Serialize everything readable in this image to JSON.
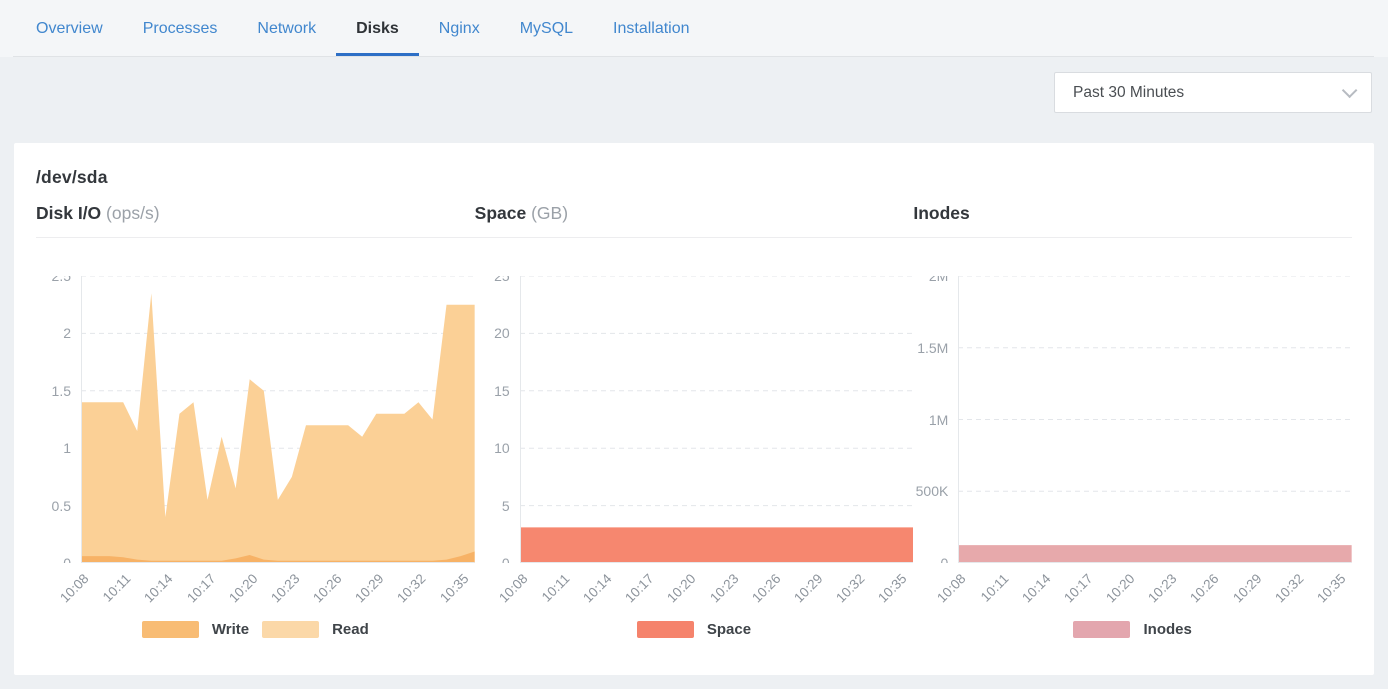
{
  "tabs": [
    {
      "label": "Overview",
      "active": false
    },
    {
      "label": "Processes",
      "active": false
    },
    {
      "label": "Network",
      "active": false
    },
    {
      "label": "Disks",
      "active": true
    },
    {
      "label": "Nginx",
      "active": false
    },
    {
      "label": "MySQL",
      "active": false
    },
    {
      "label": "Installation",
      "active": false
    }
  ],
  "toolbar": {
    "time_range_value": "Past 30 Minutes",
    "chevron_icon": "chevron-down"
  },
  "card": {
    "disk_name": "/dev/sda"
  },
  "colors": {
    "tab_blue": "#4187ce",
    "active_underline": "#2d6fc6",
    "write_orange": "#f7b266",
    "read_orange": "#fbd096",
    "space_salmon": "#f6876f",
    "inodes_pink": "#e7a9ab",
    "grid": "#e3e6ea",
    "axis": "#e5e8eb"
  },
  "chart_data": [
    {
      "type": "area",
      "title": "Disk I/O",
      "unit": "(ops/s)",
      "ylim": [
        0,
        2.5
      ],
      "ymax": 2.5,
      "grid": true,
      "legend_position": "bottom",
      "x": [
        "10:08",
        "10:09",
        "10:10",
        "10:11",
        "10:12",
        "10:13",
        "10:14",
        "10:15",
        "10:16",
        "10:17",
        "10:18",
        "10:19",
        "10:20",
        "10:21",
        "10:22",
        "10:23",
        "10:24",
        "10:25",
        "10:26",
        "10:27",
        "10:28",
        "10:29",
        "10:30",
        "10:31",
        "10:32",
        "10:33",
        "10:34",
        "10:35",
        "10:36"
      ],
      "xlabels": [
        "10:08",
        "10:11",
        "10:14",
        "10:17",
        "10:20",
        "10:23",
        "10:26",
        "10:29",
        "10:32",
        "10:35"
      ],
      "xtick_every": 3,
      "yticks": [
        {
          "v": 2.5,
          "label": "2.5"
        },
        {
          "v": 2,
          "label": "2"
        },
        {
          "v": 1.5,
          "label": "1.5"
        },
        {
          "v": 1,
          "label": "1"
        },
        {
          "v": 0.5,
          "label": "0.5"
        },
        {
          "v": 0,
          "label": "0"
        }
      ],
      "series": [
        {
          "name": "Read",
          "color": "#fbd096",
          "values": [
            1.4,
            1.4,
            1.4,
            1.4,
            1.15,
            2.35,
            0.4,
            1.3,
            1.4,
            0.55,
            1.1,
            0.65,
            1.6,
            1.5,
            0.55,
            0.75,
            1.2,
            1.2,
            1.2,
            1.2,
            1.1,
            1.3,
            1.3,
            1.3,
            1.4,
            1.25,
            2.25,
            2.25,
            2.25
          ]
        },
        {
          "name": "Write",
          "color": "#f7b266",
          "values": [
            0.06,
            0.06,
            0.06,
            0.05,
            0.03,
            0.02,
            0.02,
            0.02,
            0.02,
            0.02,
            0.02,
            0.04,
            0.07,
            0.03,
            0.02,
            0.02,
            0.02,
            0.02,
            0.02,
            0.02,
            0.02,
            0.02,
            0.02,
            0.02,
            0.02,
            0.02,
            0.03,
            0.06,
            0.1
          ]
        }
      ],
      "legend": [
        {
          "label": "Write",
          "color": "#f8bc74"
        },
        {
          "label": "Read",
          "color": "#fbd8a8"
        }
      ]
    },
    {
      "type": "area",
      "title": "Space",
      "unit": "(GB)",
      "ylim": [
        0,
        25
      ],
      "ymax": 25,
      "grid": true,
      "legend_position": "bottom",
      "x": [
        "10:08",
        "10:09",
        "10:10",
        "10:11",
        "10:12",
        "10:13",
        "10:14",
        "10:15",
        "10:16",
        "10:17",
        "10:18",
        "10:19",
        "10:20",
        "10:21",
        "10:22",
        "10:23",
        "10:24",
        "10:25",
        "10:26",
        "10:27",
        "10:28",
        "10:29",
        "10:30",
        "10:31",
        "10:32",
        "10:33",
        "10:34",
        "10:35",
        "10:36"
      ],
      "xlabels": [
        "10:08",
        "10:11",
        "10:14",
        "10:17",
        "10:20",
        "10:23",
        "10:26",
        "10:29",
        "10:32",
        "10:35"
      ],
      "xtick_every": 3,
      "yticks": [
        {
          "v": 25,
          "label": "25"
        },
        {
          "v": 20,
          "label": "20"
        },
        {
          "v": 15,
          "label": "15"
        },
        {
          "v": 10,
          "label": "10"
        },
        {
          "v": 5,
          "label": "5"
        },
        {
          "v": 0,
          "label": "0"
        }
      ],
      "series": [
        {
          "name": "Space",
          "color": "#f6876f",
          "values": [
            3.1,
            3.1,
            3.1,
            3.1,
            3.1,
            3.1,
            3.1,
            3.1,
            3.1,
            3.1,
            3.1,
            3.1,
            3.1,
            3.1,
            3.1,
            3.1,
            3.1,
            3.1,
            3.1,
            3.1,
            3.1,
            3.1,
            3.1,
            3.1,
            3.1,
            3.1,
            3.1,
            3.1,
            3.1
          ]
        }
      ],
      "legend": [
        {
          "label": "Space",
          "color": "#f5836c"
        }
      ]
    },
    {
      "type": "area",
      "title": "Inodes",
      "unit": "",
      "ylim": [
        0,
        2000000
      ],
      "ymax": 2000000,
      "grid": true,
      "legend_position": "bottom",
      "x": [
        "10:08",
        "10:09",
        "10:10",
        "10:11",
        "10:12",
        "10:13",
        "10:14",
        "10:15",
        "10:16",
        "10:17",
        "10:18",
        "10:19",
        "10:20",
        "10:21",
        "10:22",
        "10:23",
        "10:24",
        "10:25",
        "10:26",
        "10:27",
        "10:28",
        "10:29",
        "10:30",
        "10:31",
        "10:32",
        "10:33",
        "10:34",
        "10:35",
        "10:36"
      ],
      "xlabels": [
        "10:08",
        "10:11",
        "10:14",
        "10:17",
        "10:20",
        "10:23",
        "10:26",
        "10:29",
        "10:32",
        "10:35"
      ],
      "xtick_every": 3,
      "yticks": [
        {
          "v": 2000000,
          "label": "2M"
        },
        {
          "v": 1500000,
          "label": "1.5M"
        },
        {
          "v": 1000000,
          "label": "1M"
        },
        {
          "v": 500000,
          "label": "500K"
        },
        {
          "v": 0,
          "label": "0"
        }
      ],
      "series": [
        {
          "name": "Inodes",
          "color": "#e7a9ab",
          "values": [
            125000,
            125000,
            125000,
            125000,
            125000,
            125000,
            125000,
            125000,
            125000,
            125000,
            125000,
            125000,
            125000,
            125000,
            125000,
            125000,
            125000,
            125000,
            125000,
            125000,
            125000,
            125000,
            125000,
            125000,
            125000,
            125000,
            125000,
            125000,
            125000
          ]
        }
      ],
      "legend": [
        {
          "label": "Inodes",
          "color": "#e3a6ae"
        }
      ]
    }
  ]
}
